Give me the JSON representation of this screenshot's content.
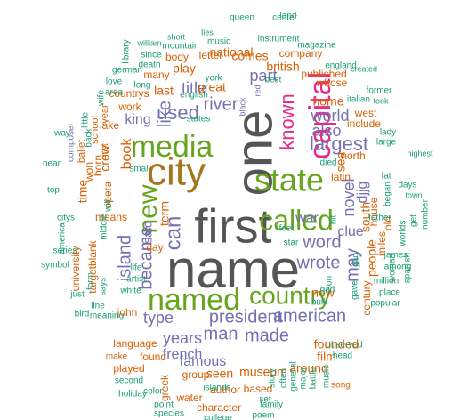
{
  "colors": {
    "green": "#66a61e",
    "orange": "#d95f02",
    "purple": "#7570b3",
    "pink": "#e7298a",
    "brown": "#a6761d",
    "gray": "#555555",
    "teal": "#1b9e77"
  },
  "words": [
    {
      "text": "name",
      "color": "gray"
    },
    {
      "text": "first",
      "color": "gray"
    },
    {
      "text": "one",
      "color": "gray"
    },
    {
      "text": "city",
      "color": "brown"
    },
    {
      "text": "media",
      "color": "green"
    },
    {
      "text": "state",
      "color": "green"
    },
    {
      "text": "called",
      "color": "green"
    },
    {
      "text": "named",
      "color": "green"
    },
    {
      "text": "country",
      "color": "green"
    },
    {
      "text": "capital",
      "color": "pink"
    },
    {
      "text": "known",
      "color": "pink"
    },
    {
      "text": "new",
      "color": "green"
    },
    {
      "text": "island",
      "color": "purple"
    },
    {
      "text": "became",
      "color": "purple"
    },
    {
      "text": "can",
      "color": "purple"
    },
    {
      "text": "used",
      "color": "purple"
    },
    {
      "text": "like",
      "color": "purple"
    },
    {
      "text": "king",
      "color": "purple"
    },
    {
      "text": "river",
      "color": "purple"
    },
    {
      "text": "title",
      "color": "purple"
    },
    {
      "text": "part",
      "color": "purple"
    },
    {
      "text": "largest",
      "color": "purple"
    },
    {
      "text": "also",
      "color": "purple"
    },
    {
      "text": "world",
      "color": "purple"
    },
    {
      "text": "word",
      "color": "purple"
    },
    {
      "text": "wrote",
      "color": "purple"
    },
    {
      "text": "president",
      "color": "purple"
    },
    {
      "text": "american",
      "color": "purple"
    },
    {
      "text": "man",
      "color": "purple"
    },
    {
      "text": "made",
      "color": "purple"
    },
    {
      "text": "type",
      "color": "purple"
    },
    {
      "text": "years",
      "color": "purple"
    },
    {
      "text": "famous",
      "color": "purple"
    },
    {
      "text": "novel",
      "color": "purple"
    },
    {
      "text": "may",
      "color": "purple"
    },
    {
      "text": "french",
      "color": "purple"
    },
    {
      "text": "said",
      "color": "purple"
    },
    {
      "text": "war",
      "color": "purple"
    },
    {
      "text": "clue",
      "color": "purple"
    },
    {
      "text": "djjg",
      "color": "purple"
    },
    {
      "text": "seen",
      "color": "orange"
    },
    {
      "text": "museum",
      "color": "orange"
    },
    {
      "text": "film",
      "color": "orange"
    },
    {
      "text": "founded",
      "color": "orange"
    },
    {
      "text": "people",
      "color": "orange"
    },
    {
      "text": "book",
      "color": "orange"
    },
    {
      "text": "crew",
      "color": "orange"
    },
    {
      "text": "john",
      "color": "orange"
    },
    {
      "text": "means",
      "color": "orange"
    },
    {
      "text": "term",
      "color": "orange"
    },
    {
      "text": "day",
      "color": "orange"
    },
    {
      "text": "language",
      "color": "orange"
    },
    {
      "text": "found",
      "color": "orange"
    },
    {
      "text": "group",
      "color": "orange"
    },
    {
      "text": "around",
      "color": "orange"
    },
    {
      "text": "now",
      "color": "orange"
    },
    {
      "text": "last",
      "color": "orange"
    },
    {
      "text": "great",
      "color": "orange"
    },
    {
      "text": "national",
      "color": "orange"
    },
    {
      "text": "british",
      "color": "orange"
    },
    {
      "text": "comes",
      "color": "orange"
    },
    {
      "text": "play",
      "color": "orange"
    },
    {
      "text": "home",
      "color": "orange"
    },
    {
      "text": "sea",
      "color": "orange"
    },
    {
      "text": "north",
      "color": "orange"
    },
    {
      "text": "south",
      "color": "orange"
    },
    {
      "text": "house",
      "color": "orange"
    },
    {
      "text": "whose",
      "color": "orange"
    },
    {
      "text": "include",
      "color": "orange"
    },
    {
      "text": "west",
      "color": "orange"
    },
    {
      "text": "published",
      "color": "orange"
    },
    {
      "text": "countrys",
      "color": "orange"
    },
    {
      "text": "work",
      "color": "orange"
    },
    {
      "text": "lake",
      "color": "orange"
    },
    {
      "text": "time",
      "color": "orange"
    },
    {
      "text": "won",
      "color": "orange"
    },
    {
      "text": "born",
      "color": "orange"
    },
    {
      "text": "opera",
      "color": "orange"
    },
    {
      "text": "university",
      "color": "orange"
    },
    {
      "text": "targetblank",
      "color": "orange"
    },
    {
      "text": "century",
      "color": "orange"
    },
    {
      "text": "author",
      "color": "orange"
    },
    {
      "text": "based",
      "color": "orange"
    },
    {
      "text": "character",
      "color": "orange"
    },
    {
      "text": "water",
      "color": "orange"
    },
    {
      "text": "played",
      "color": "orange"
    },
    {
      "text": "make",
      "color": "orange"
    },
    {
      "text": "song",
      "color": "orange"
    },
    {
      "text": "greek",
      "color": "orange"
    },
    {
      "text": "miles",
      "color": "orange"
    },
    {
      "text": "old",
      "color": "orange"
    },
    {
      "text": "latin",
      "color": "orange"
    },
    {
      "text": "letter",
      "color": "orange"
    },
    {
      "text": "body",
      "color": "orange"
    },
    {
      "text": "many",
      "color": "orange"
    },
    {
      "text": "company",
      "color": "orange"
    },
    {
      "text": "school",
      "color": "orange"
    },
    {
      "text": "ballet",
      "color": "orange"
    },
    {
      "text": "first",
      "color": "orange"
    },
    {
      "text": "composer",
      "color": "purple"
    },
    {
      "text": "black",
      "color": "purple"
    },
    {
      "text": "red",
      "color": "purple"
    },
    {
      "text": "mountain",
      "color": "teal"
    },
    {
      "text": "music",
      "color": "teal"
    },
    {
      "text": "since",
      "color": "teal"
    },
    {
      "text": "death",
      "color": "teal"
    },
    {
      "text": "short",
      "color": "teal"
    },
    {
      "text": "lies",
      "color": "teal"
    },
    {
      "text": "queen",
      "color": "teal"
    },
    {
      "text": "center",
      "color": "teal"
    },
    {
      "text": "instrument",
      "color": "teal"
    },
    {
      "text": "magazine",
      "color": "teal"
    },
    {
      "text": "william",
      "color": "teal"
    },
    {
      "text": "german",
      "color": "teal"
    },
    {
      "text": "york",
      "color": "teal"
    },
    {
      "text": "english",
      "color": "teal"
    },
    {
      "text": "states",
      "color": "teal"
    },
    {
      "text": "small",
      "color": "teal"
    },
    {
      "text": "died",
      "color": "teal"
    },
    {
      "text": "best",
      "color": "teal"
    },
    {
      "text": "england",
      "color": "teal"
    },
    {
      "text": "created",
      "color": "teal"
    },
    {
      "text": "italian",
      "color": "teal"
    },
    {
      "text": "former",
      "color": "teal"
    },
    {
      "text": "took",
      "color": "teal"
    },
    {
      "text": "lady",
      "color": "teal"
    },
    {
      "text": "large",
      "color": "teal"
    },
    {
      "text": "highest",
      "color": "teal"
    },
    {
      "text": "feet",
      "color": "teal"
    },
    {
      "text": "star",
      "color": "teal"
    },
    {
      "text": "jjpg",
      "color": "teal"
    },
    {
      "text": "james",
      "color": "teal"
    },
    {
      "text": "among",
      "color": "teal"
    },
    {
      "text": "days",
      "color": "teal"
    },
    {
      "text": "began",
      "color": "teal"
    },
    {
      "text": "fat",
      "color": "teal"
    },
    {
      "text": "father",
      "color": "teal"
    },
    {
      "text": "son",
      "color": "teal"
    },
    {
      "text": "gave",
      "color": "teal"
    },
    {
      "text": "worlds",
      "color": "teal"
    },
    {
      "text": "get",
      "color": "teal"
    },
    {
      "text": "number",
      "color": "teal"
    },
    {
      "text": "place",
      "color": "teal"
    },
    {
      "text": "popular",
      "color": "teal"
    },
    {
      "text": "million",
      "color": "teal"
    },
    {
      "text": "woman",
      "color": "teal"
    },
    {
      "text": "spanish",
      "color": "teal"
    },
    {
      "text": "town",
      "color": "teal"
    },
    {
      "text": "god",
      "color": "teal"
    },
    {
      "text": "hit",
      "color": "teal"
    },
    {
      "text": "built",
      "color": "teal"
    },
    {
      "text": "islands",
      "color": "teal"
    },
    {
      "text": "observed",
      "color": "teal"
    },
    {
      "text": "head",
      "color": "teal"
    },
    {
      "text": "family",
      "color": "teal"
    },
    {
      "text": "poem",
      "color": "teal"
    },
    {
      "text": "college",
      "color": "teal"
    },
    {
      "text": "set",
      "color": "teal"
    },
    {
      "text": "land",
      "color": "teal"
    },
    {
      "text": "story",
      "color": "teal"
    },
    {
      "text": "often",
      "color": "teal"
    },
    {
      "text": "general",
      "color": "teal"
    },
    {
      "text": "major",
      "color": "teal"
    },
    {
      "text": "battle",
      "color": "teal"
    },
    {
      "text": "music",
      "color": "teal"
    },
    {
      "text": "species",
      "color": "teal"
    },
    {
      "text": "point",
      "color": "teal"
    },
    {
      "text": "color",
      "color": "teal"
    },
    {
      "text": "holiday",
      "color": "teal"
    },
    {
      "text": "second",
      "color": "teal"
    },
    {
      "text": "meaning",
      "color": "teal"
    },
    {
      "text": "form",
      "color": "teal"
    },
    {
      "text": "says",
      "color": "teal"
    },
    {
      "text": "just",
      "color": "teal"
    },
    {
      "text": "bird",
      "color": "teal"
    },
    {
      "text": "line",
      "color": "teal"
    },
    {
      "text": "white",
      "color": "teal"
    },
    {
      "text": "life",
      "color": "teal"
    },
    {
      "text": "artist",
      "color": "teal"
    },
    {
      "text": "america",
      "color": "teal"
    },
    {
      "text": "symbol",
      "color": "teal"
    },
    {
      "text": "series",
      "color": "teal"
    },
    {
      "text": "citys",
      "color": "teal"
    },
    {
      "text": "top",
      "color": "teal"
    },
    {
      "text": "near",
      "color": "teal"
    },
    {
      "text": "way",
      "color": "teal"
    },
    {
      "text": "back",
      "color": "teal"
    },
    {
      "text": "little",
      "color": "teal"
    },
    {
      "text": "middle",
      "color": "teal"
    },
    {
      "text": "will",
      "color": "teal"
    },
    {
      "text": "love",
      "color": "teal"
    },
    {
      "text": "area",
      "color": "teal"
    },
    {
      "text": "long",
      "color": "teal"
    },
    {
      "text": "library",
      "color": "teal"
    },
    {
      "text": "wife",
      "color": "teal"
    },
    {
      "text": "year",
      "color": "orange"
    }
  ]
}
